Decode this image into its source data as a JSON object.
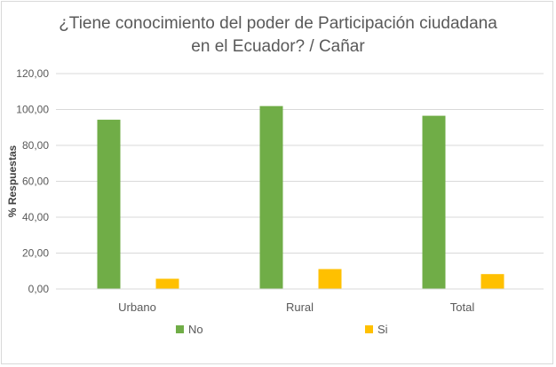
{
  "chart_data": {
    "type": "bar",
    "title_line1": "¿Tiene conocimiento del poder de Participación ciudadana",
    "title_line2": "en el Ecuador?  / Cañar",
    "ylabel": "% Respuestas",
    "categories": [
      "Urbano",
      "Rural",
      "Total"
    ],
    "series": [
      {
        "name": "No",
        "values": [
          94.3,
          101.9,
          96.5
        ],
        "color": "#70ad47"
      },
      {
        "name": "Si",
        "values": [
          5.7,
          11.1,
          8.3
        ],
        "color": "#ffc000"
      }
    ],
    "ylim": [
      0,
      120
    ],
    "yticks": [
      "0,00",
      "20,00",
      "40,00",
      "60,00",
      "80,00",
      "100,00",
      "120,00"
    ],
    "grid": true,
    "legend_position": "bottom"
  }
}
